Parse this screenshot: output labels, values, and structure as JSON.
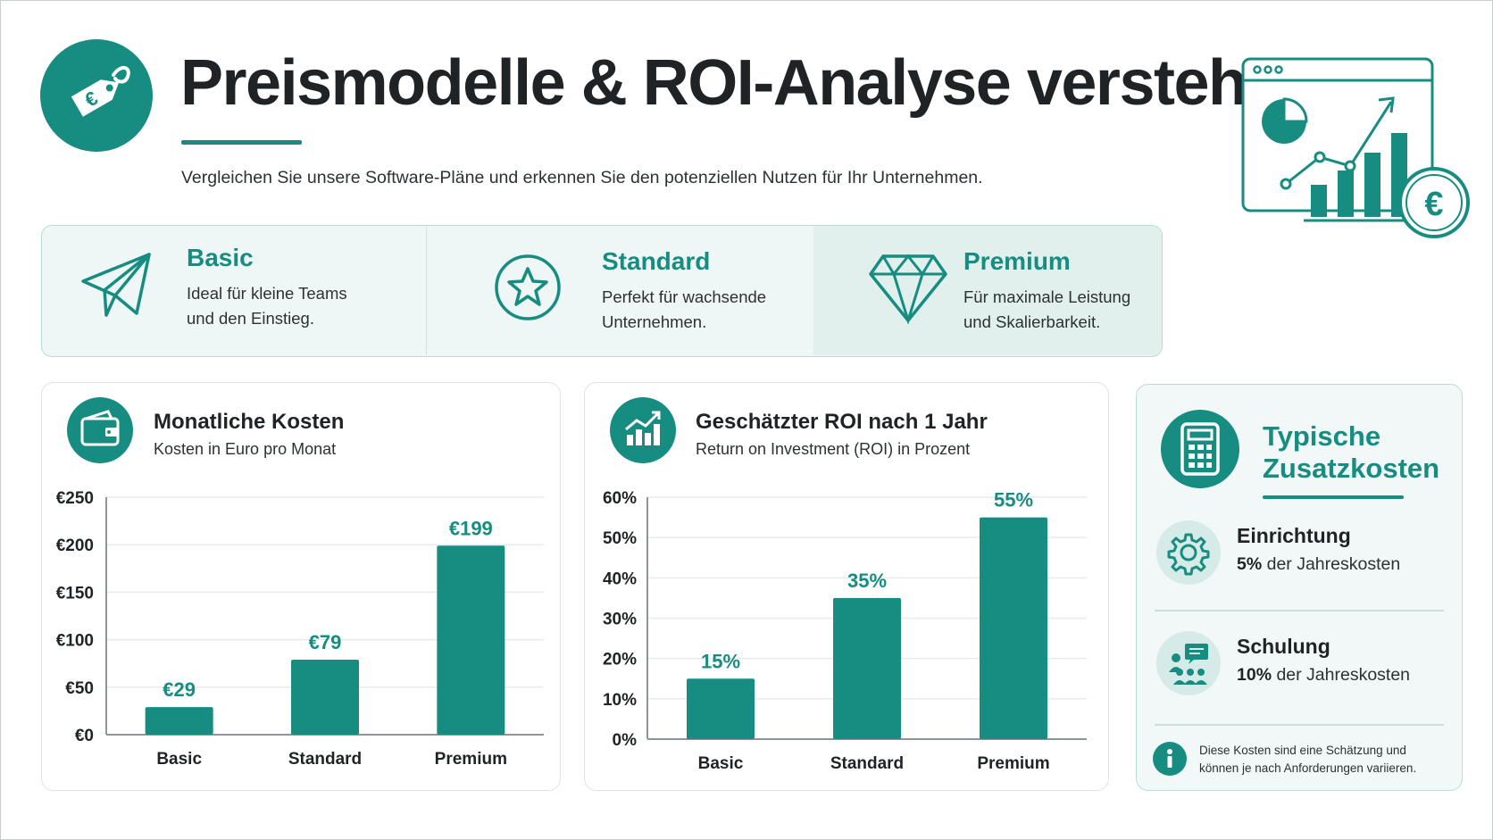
{
  "header": {
    "title": "Preismodelle & ROI-Analyse verstehen",
    "subtitle": "Vergleichen Sie unsere Software-Pläne und erkennen Sie den potenziellen Nutzen für Ihr Unternehmen.",
    "icon": "price-tag-euro-icon",
    "illustration_icon": "dashboard-growth-euro-icon"
  },
  "plans": [
    {
      "name": "Basic",
      "desc_line1": "Ideal für kleine Teams",
      "desc_line2": "und den Einstieg.",
      "icon": "paper-plane-icon"
    },
    {
      "name": "Standard",
      "desc_line1": "Perfekt für wachsende",
      "desc_line2": "Unternehmen.",
      "icon": "star-circle-icon"
    },
    {
      "name": "Premium",
      "desc_line1": "Für maximale Leistung",
      "desc_line2": "und Skalierbarkeit.",
      "icon": "diamond-icon"
    }
  ],
  "cost_card": {
    "title": "Monatliche Kosten",
    "subtitle": "Kosten in Euro pro Monat",
    "icon": "wallet-icon"
  },
  "roi_card": {
    "title": "Geschätzter ROI nach 1 Jahr",
    "subtitle": "Return on Investment (ROI) in Prozent",
    "icon": "bar-growth-icon"
  },
  "chart_data": [
    {
      "type": "bar",
      "categories": [
        "Basic",
        "Standard",
        "Premium"
      ],
      "values": [
        29,
        79,
        199
      ],
      "value_labels": [
        "€29",
        "€79",
        "€199"
      ],
      "ylim": [
        0,
        250
      ],
      "yticks": [
        0,
        50,
        100,
        150,
        200,
        250
      ],
      "ytick_labels": [
        "€0",
        "€50",
        "€100",
        "€150",
        "€200",
        "€250"
      ],
      "grid": true,
      "color": "#178c80"
    },
    {
      "type": "bar",
      "categories": [
        "Basic",
        "Standard",
        "Premium"
      ],
      "values": [
        15,
        35,
        55
      ],
      "value_labels": [
        "15%",
        "35%",
        "55%"
      ],
      "ylim": [
        0,
        60
      ],
      "yticks": [
        0,
        10,
        20,
        30,
        40,
        50,
        60
      ],
      "ytick_labels": [
        "0%",
        "10%",
        "20%",
        "30%",
        "40%",
        "50%",
        "60%"
      ],
      "grid": true,
      "color": "#178c80"
    }
  ],
  "extra_costs": {
    "title_line1": "Typische",
    "title_line2": "Zusatzkosten",
    "icon": "calculator-icon",
    "items": [
      {
        "label": "Einrichtung",
        "percent": "5%",
        "text": " der Jahreskosten",
        "icon": "gear-icon"
      },
      {
        "label": "Schulung",
        "percent": "10%",
        "text": " der Jahreskosten",
        "icon": "training-group-icon"
      }
    ],
    "note_line1": "Diese Kosten sind eine Schätzung und",
    "note_line2": "können je nach Anforderungen variieren.",
    "note_icon": "info-icon"
  },
  "colors": {
    "accent": "#178c80",
    "light_accent": "#eef7f5",
    "text": "#1f2326"
  }
}
